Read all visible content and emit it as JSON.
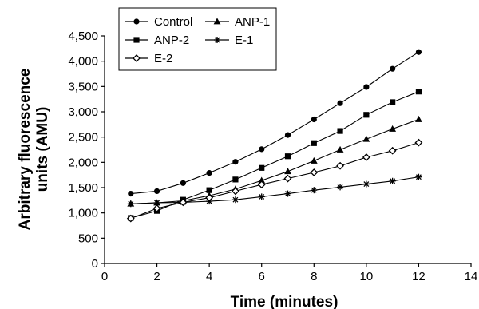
{
  "chart_data": {
    "type": "line",
    "title": "",
    "xlabel": "Time (minutes)",
    "ylabel_lines": [
      "Arbitrary fluorescence",
      "units (AMU)"
    ],
    "xlim": [
      0,
      14
    ],
    "ylim": [
      0,
      4500
    ],
    "x_ticks": [
      0,
      2,
      4,
      6,
      8,
      10,
      12,
      14
    ],
    "x_tick_labels": [
      "0",
      "2",
      "4",
      "6",
      "8",
      "10",
      "12",
      "14"
    ],
    "y_ticks": [
      0,
      500,
      1000,
      1500,
      2000,
      2500,
      3000,
      3500,
      4000,
      4500
    ],
    "y_tick_labels": [
      "0",
      "500",
      "1,000",
      "1,500",
      "2,000",
      "2,500",
      "3,000",
      "3,500",
      "4,000",
      "4,500"
    ],
    "grid": false,
    "legend_position": "top-left",
    "x": [
      1,
      2,
      3,
      4,
      5,
      6,
      7,
      8,
      9,
      10,
      11,
      12
    ],
    "series": [
      {
        "name": "Control",
        "marker": "circle",
        "values": [
          1380,
          1430,
          1590,
          1790,
          2010,
          2260,
          2540,
          2850,
          3170,
          3490,
          3850,
          4180
        ]
      },
      {
        "name": "ANP-1",
        "marker": "triangle",
        "values": [
          1180,
          1200,
          1240,
          1340,
          1470,
          1640,
          1820,
          2030,
          2250,
          2460,
          2660,
          2850
        ]
      },
      {
        "name": "ANP-2",
        "marker": "square",
        "values": [
          900,
          1040,
          1260,
          1450,
          1660,
          1890,
          2120,
          2380,
          2620,
          2940,
          3190,
          3400
        ]
      },
      {
        "name": "E-1",
        "marker": "star",
        "values": [
          1180,
          1200,
          1210,
          1230,
          1260,
          1320,
          1380,
          1450,
          1510,
          1570,
          1630,
          1710
        ]
      },
      {
        "name": "E-2",
        "marker": "diamond",
        "values": [
          890,
          1090,
          1210,
          1300,
          1430,
          1560,
          1680,
          1800,
          1930,
          2100,
          2230,
          2390
        ]
      }
    ]
  }
}
